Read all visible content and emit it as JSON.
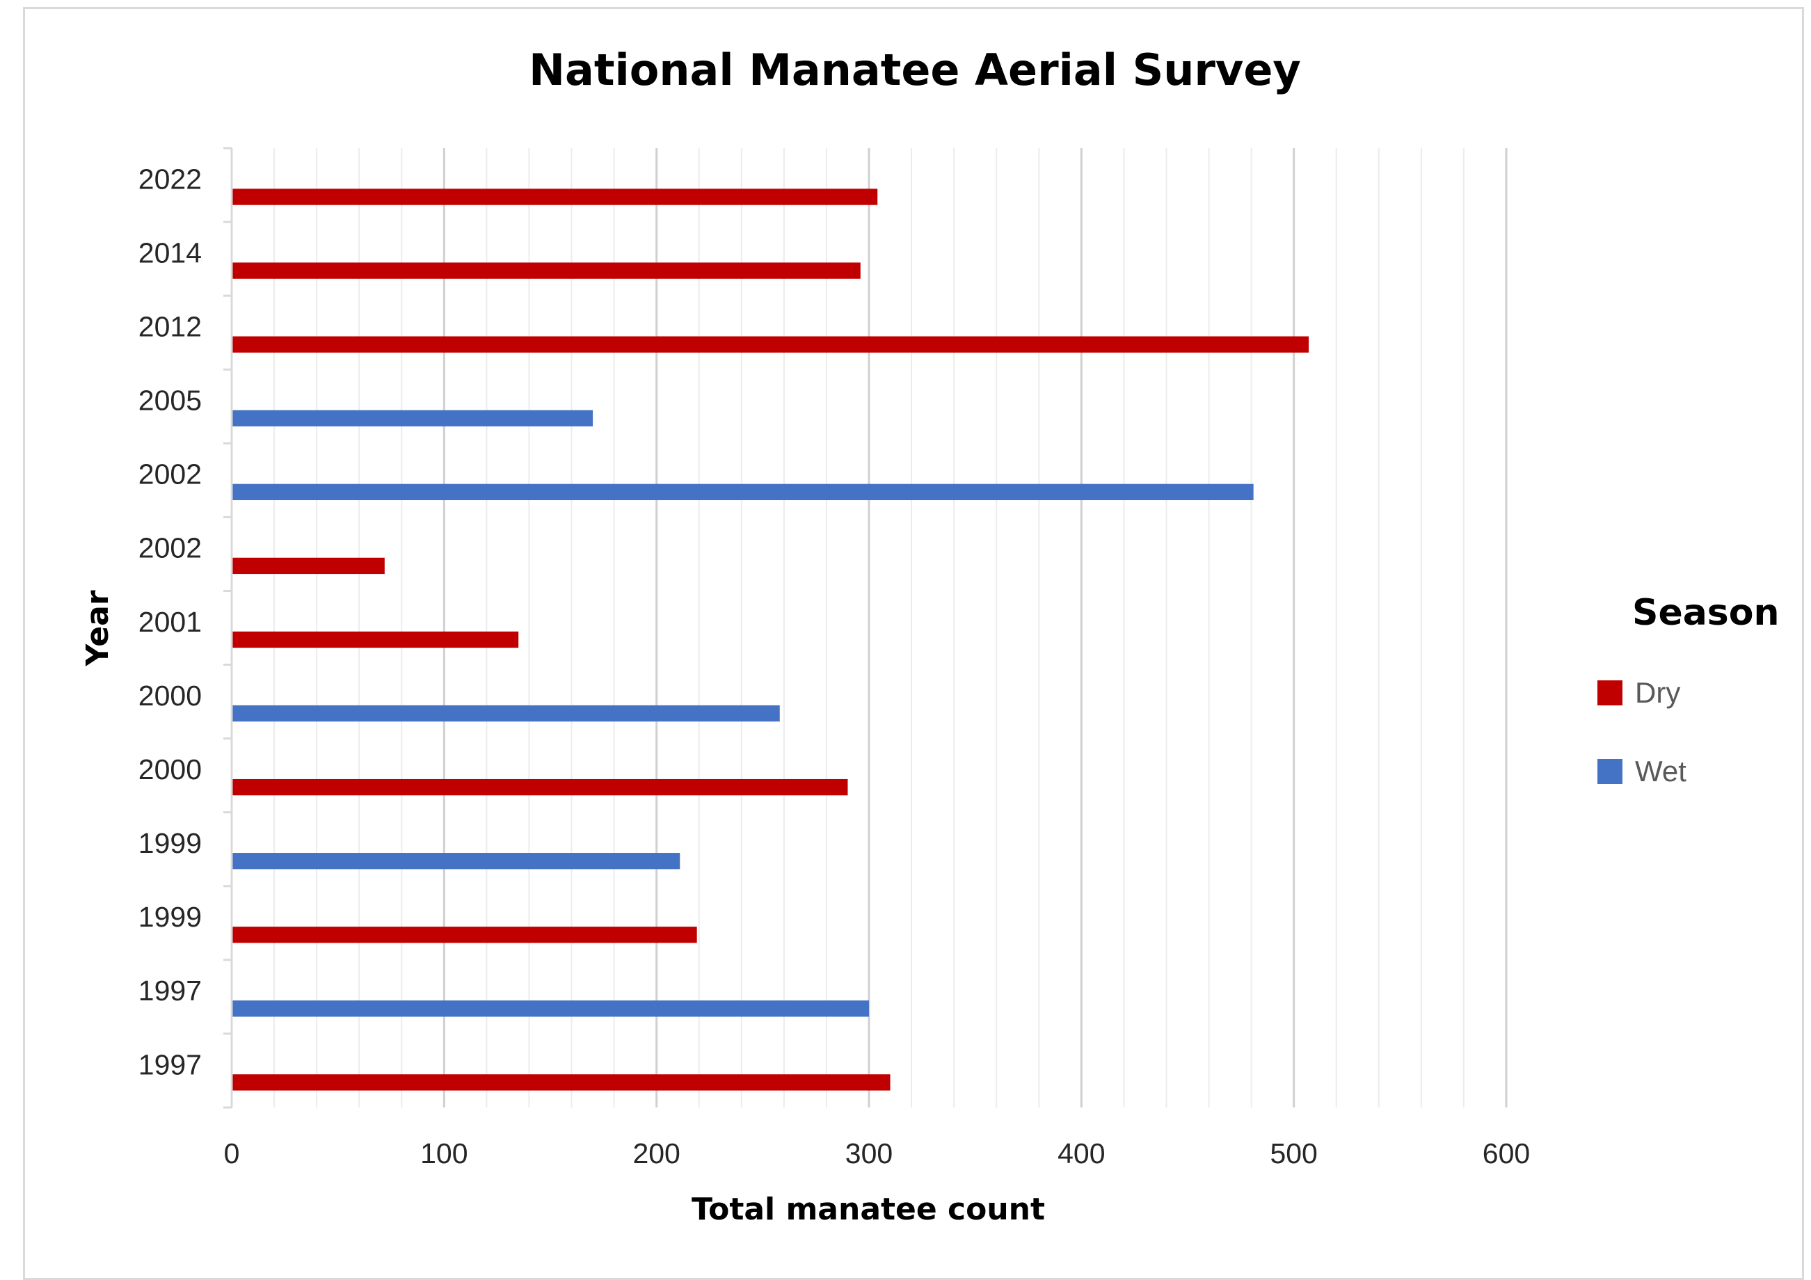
{
  "chart_data": {
    "type": "bar",
    "orientation": "horizontal",
    "title": "National Manatee Aerial Survey",
    "xlabel": "Total manatee count",
    "ylabel": "Year",
    "xlim": [
      0,
      600
    ],
    "x_ticks": [
      "0",
      "100",
      "200",
      "300",
      "400",
      "500",
      "600"
    ],
    "grid": true,
    "legend_title": "Season",
    "legend_position": "right",
    "series": [
      {
        "name": "Dry",
        "color": "#c00000"
      },
      {
        "name": "Wet",
        "color": "#4472c4"
      }
    ],
    "bars": [
      {
        "category": "2022",
        "season": "Dry",
        "value": 304
      },
      {
        "category": "2014",
        "season": "Dry",
        "value": 296
      },
      {
        "category": "2012",
        "season": "Dry",
        "value": 507
      },
      {
        "category": "2005",
        "season": "Wet",
        "value": 170
      },
      {
        "category": "2002",
        "season": "Wet",
        "value": 481
      },
      {
        "category": "2002",
        "season": "Dry",
        "value": 72
      },
      {
        "category": "2001",
        "season": "Dry",
        "value": 135
      },
      {
        "category": "2000",
        "season": "Wet",
        "value": 258
      },
      {
        "category": "2000",
        "season": "Dry",
        "value": 290
      },
      {
        "category": "1999",
        "season": "Wet",
        "value": 211
      },
      {
        "category": "1999",
        "season": "Dry",
        "value": 219
      },
      {
        "category": "1997",
        "season": "Wet",
        "value": 300
      },
      {
        "category": "1997",
        "season": "Dry",
        "value": 310
      }
    ]
  }
}
